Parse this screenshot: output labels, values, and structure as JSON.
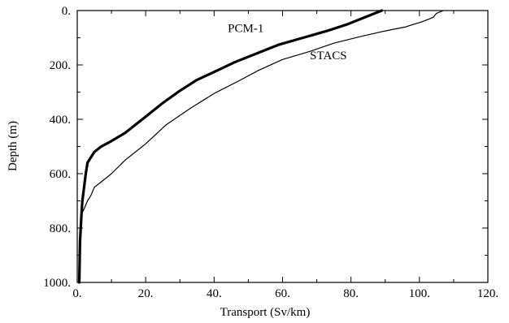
{
  "chart_data": {
    "type": "line",
    "title": "",
    "xlabel": "Transport (Sv/km)",
    "ylabel": "Depth (m)",
    "xlim": [
      0,
      120
    ],
    "ylim": [
      0,
      1000
    ],
    "y_inverted": true,
    "grid": false,
    "x_ticks": [
      0,
      20,
      40,
      60,
      80,
      100,
      120
    ],
    "x_tick_labels": [
      "0.",
      "20.",
      "40.",
      "60.",
      "80.",
      "100.",
      "120."
    ],
    "y_ticks": [
      0,
      200,
      400,
      600,
      800,
      1000
    ],
    "y_tick_labels": [
      "0.",
      "200.",
      "400.",
      "600.",
      "800.",
      "1000."
    ],
    "series": [
      {
        "name": "PCM-1",
        "color": "#000000",
        "line": "thick",
        "points": [
          [
            89,
            0
          ],
          [
            84,
            25
          ],
          [
            79,
            50
          ],
          [
            73,
            75
          ],
          [
            66,
            100
          ],
          [
            59,
            125
          ],
          [
            52,
            160
          ],
          [
            46,
            190
          ],
          [
            41,
            220
          ],
          [
            35,
            255
          ],
          [
            30,
            295
          ],
          [
            25,
            340
          ],
          [
            20,
            390
          ],
          [
            17,
            420
          ],
          [
            14,
            450
          ],
          [
            10,
            480
          ],
          [
            7,
            500
          ],
          [
            5,
            520
          ],
          [
            4,
            540
          ],
          [
            3,
            560
          ],
          [
            2.5,
            600
          ],
          [
            2,
            650
          ],
          [
            1.5,
            700
          ],
          [
            1.2,
            760
          ],
          [
            0.8,
            850
          ],
          [
            0.6,
            1000
          ]
        ]
      },
      {
        "name": "STACS",
        "color": "#000000",
        "line": "thin",
        "points": [
          [
            107,
            0
          ],
          [
            105,
            10
          ],
          [
            104,
            25
          ],
          [
            101,
            40
          ],
          [
            96,
            60
          ],
          [
            90,
            75
          ],
          [
            83,
            95
          ],
          [
            75,
            120
          ],
          [
            68,
            150
          ],
          [
            60,
            180
          ],
          [
            53,
            220
          ],
          [
            47,
            260
          ],
          [
            40,
            305
          ],
          [
            33,
            360
          ],
          [
            26,
            420
          ],
          [
            20,
            490
          ],
          [
            16,
            530
          ],
          [
            14,
            550
          ],
          [
            10,
            600
          ],
          [
            7,
            630
          ],
          [
            5,
            650
          ],
          [
            4,
            680
          ],
          [
            3,
            700
          ],
          [
            2,
            730
          ],
          [
            1.2,
            750
          ],
          [
            1,
            800
          ],
          [
            0.8,
            900
          ],
          [
            0.6,
            1000
          ]
        ]
      }
    ],
    "annotations": [
      {
        "text": "PCM-1",
        "x": 44,
        "y": 160
      },
      {
        "text": "STACS",
        "x": 68,
        "y": 260
      }
    ]
  }
}
